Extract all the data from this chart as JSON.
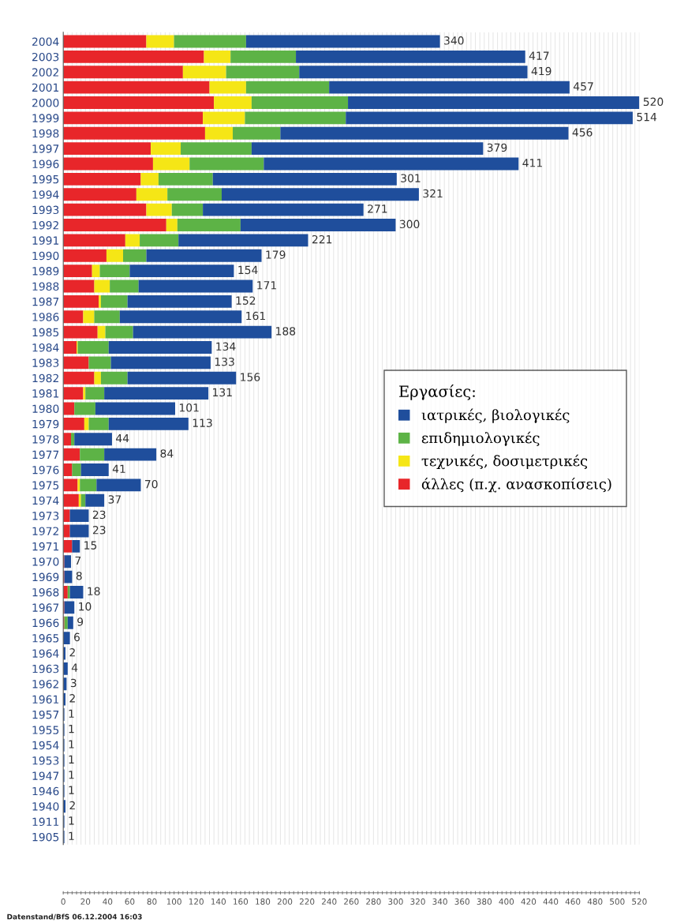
{
  "chart_data": {
    "type": "bar",
    "orientation": "horizontal",
    "stacked": true,
    "categories": [
      "2004",
      "2003",
      "2002",
      "2001",
      "2000",
      "1999",
      "1998",
      "1997",
      "1996",
      "1995",
      "1994",
      "1993",
      "1992",
      "1991",
      "1990",
      "1989",
      "1988",
      "1987",
      "1986",
      "1985",
      "1984",
      "1983",
      "1982",
      "1981",
      "1980",
      "1979",
      "1978",
      "1977",
      "1976",
      "1975",
      "1974",
      "1973",
      "1972",
      "1971",
      "1970",
      "1969",
      "1968",
      "1967",
      "1966",
      "1965",
      "1964",
      "1963",
      "1962",
      "1961",
      "1957",
      "1955",
      "1954",
      "1953",
      "1947",
      "1946",
      "1940",
      "1911",
      "1905"
    ],
    "series": [
      {
        "name": "άλλες (π.χ. ανασκοπίσεις)",
        "color": "#e8262a",
        "values": [
          75,
          127,
          108,
          132,
          136,
          126,
          128,
          79,
          81,
          70,
          66,
          75,
          93,
          56,
          39,
          26,
          28,
          32,
          18,
          31,
          12,
          23,
          28,
          18,
          10,
          19,
          7,
          15,
          8,
          13,
          14,
          6,
          6,
          8,
          1,
          1,
          4,
          1,
          1,
          0,
          0,
          0,
          0,
          0,
          0,
          0,
          0,
          0,
          0,
          0,
          0,
          0,
          0
        ]
      },
      {
        "name": "τεχνικές, δοσιμετρικές",
        "color": "#f5e616",
        "values": [
          25,
          24,
          39,
          33,
          34,
          38,
          25,
          27,
          33,
          16,
          28,
          23,
          10,
          13,
          15,
          7,
          14,
          2,
          10,
          7,
          1,
          0,
          6,
          2,
          0,
          4,
          0,
          0,
          0,
          2,
          2,
          0,
          0,
          0,
          0,
          0,
          0,
          0,
          0,
          0,
          0,
          0,
          0,
          0,
          0,
          0,
          0,
          0,
          0,
          0,
          0,
          0,
          0
        ]
      },
      {
        "name": "επιδημιολογικές",
        "color": "#5db346",
        "values": [
          65,
          59,
          66,
          75,
          87,
          91,
          43,
          64,
          67,
          49,
          49,
          28,
          57,
          35,
          21,
          27,
          26,
          24,
          23,
          25,
          28,
          20,
          24,
          17,
          19,
          18,
          3,
          22,
          8,
          15,
          4,
          0,
          0,
          0,
          0,
          0,
          2,
          0,
          3,
          0,
          0,
          0,
          0,
          0,
          0,
          0,
          0,
          0,
          0,
          0,
          0,
          0,
          0
        ]
      },
      {
        "name": "ιατρικές, βιολογικές",
        "color": "#1f4e9c",
        "values": [
          175,
          207,
          206,
          217,
          263,
          259,
          260,
          209,
          230,
          166,
          178,
          145,
          140,
          117,
          104,
          94,
          103,
          94,
          110,
          125,
          93,
          90,
          98,
          94,
          72,
          72,
          34,
          47,
          25,
          40,
          17,
          17,
          17,
          7,
          6,
          7,
          12,
          9,
          5,
          6,
          2,
          4,
          3,
          2,
          1,
          1,
          1,
          1,
          1,
          1,
          2,
          1,
          1
        ]
      }
    ],
    "totals": [
      "340",
      "417",
      "419",
      "457",
      "520",
      "514",
      "456",
      "379",
      "411",
      "301",
      "321",
      "271",
      "300",
      "221",
      "179",
      "154",
      "171",
      "152",
      "161",
      "188",
      "134",
      "133",
      "156",
      "131",
      "101",
      "113",
      "44",
      "84",
      "41",
      "70",
      "37",
      "23",
      "23",
      "15",
      "7",
      "8",
      "18",
      "10",
      "9",
      "6",
      "2",
      "4",
      "3",
      "2",
      "1",
      "1",
      "1",
      "1",
      "1",
      "1",
      "2",
      "1",
      "1"
    ],
    "xlim": [
      0,
      520
    ],
    "xticks": [
      0,
      {
        "value": 4,
        "label": null
      },
      {
        "value": 8,
        "label": null
      },
      {
        "value": 12,
        "label": null
      },
      {
        "value": 16,
        "label": null
      },
      20,
      {
        "value": 24,
        "label": null
      },
      {
        "value": 28,
        "label": null
      },
      {
        "value": 32,
        "label": null
      },
      {
        "value": 36,
        "label": null
      },
      40,
      {
        "value": 44,
        "label": null
      },
      {
        "value": 48,
        "label": null
      },
      {
        "value": 52,
        "label": null
      },
      {
        "value": 56,
        "label": null
      },
      60,
      {
        "value": 64,
        "label": null
      },
      {
        "value": 68,
        "label": null
      },
      {
        "value": 72,
        "label": null
      },
      {
        "value": 76,
        "label": null
      },
      80,
      {
        "value": 84,
        "label": null
      },
      {
        "value": 88,
        "label": null
      },
      {
        "value": 92,
        "label": null
      },
      {
        "value": 96,
        "label": null
      },
      100,
      {
        "value": 104,
        "label": null
      },
      {
        "value": 108,
        "label": null
      },
      {
        "value": 112,
        "label": null
      },
      {
        "value": 116,
        "label": null
      },
      120,
      {
        "value": 124,
        "label": null
      },
      {
        "value": 128,
        "label": null
      },
      {
        "value": 132,
        "label": null
      },
      {
        "value": 136,
        "label": null
      },
      140,
      {
        "value": 144,
        "label": null
      },
      {
        "value": 148,
        "label": null
      },
      {
        "value": 152,
        "label": null
      },
      {
        "value": 156,
        "label": null
      },
      160,
      {
        "value": 164,
        "label": null
      },
      {
        "value": 168,
        "label": null
      },
      {
        "value": 172,
        "label": null
      },
      {
        "value": 176,
        "label": null
      },
      180,
      {
        "value": 184,
        "label": null
      },
      {
        "value": 188,
        "label": null
      },
      {
        "value": 192,
        "label": null
      },
      {
        "value": 196,
        "label": null
      },
      200,
      {
        "value": 204,
        "label": null
      },
      {
        "value": 208,
        "label": null
      },
      {
        "value": 212,
        "label": null
      },
      {
        "value": 216,
        "label": null
      },
      220,
      {
        "value": 224,
        "label": null
      },
      {
        "value": 228,
        "label": null
      },
      {
        "value": 232,
        "label": null
      },
      {
        "value": 236,
        "label": null
      },
      240,
      {
        "value": 244,
        "label": null
      },
      {
        "value": 248,
        "label": null
      },
      {
        "value": 252,
        "label": null
      },
      {
        "value": 256,
        "label": null
      },
      260,
      {
        "value": 264,
        "label": null
      },
      {
        "value": 268,
        "label": null
      },
      {
        "value": 272,
        "label": null
      },
      {
        "value": 276,
        "label": null
      },
      280,
      {
        "value": 284,
        "label": null
      },
      {
        "value": 288,
        "label": null
      },
      {
        "value": 292,
        "label": null
      },
      {
        "value": 296,
        "label": null
      },
      300,
      {
        "value": 304,
        "label": null
      },
      {
        "value": 308,
        "label": null
      },
      {
        "value": 312,
        "label": null
      },
      {
        "value": 316,
        "label": null
      },
      320,
      {
        "value": 324,
        "label": null
      },
      {
        "value": 328,
        "label": null
      },
      {
        "value": 332,
        "label": null
      },
      {
        "value": 336,
        "label": null
      },
      340,
      {
        "value": 344,
        "label": null
      },
      {
        "value": 348,
        "label": null
      },
      {
        "value": 352,
        "label": null
      },
      {
        "value": 356,
        "label": null
      },
      360,
      {
        "value": 364,
        "label": null
      },
      {
        "value": 368,
        "label": null
      },
      {
        "value": 372,
        "label": null
      },
      {
        "value": 376,
        "label": null
      },
      380,
      {
        "value": 384,
        "label": null
      },
      {
        "value": 388,
        "label": null
      },
      {
        "value": 392,
        "label": null
      },
      {
        "value": 396,
        "label": null
      },
      400,
      {
        "value": 404,
        "label": null
      },
      {
        "value": 408,
        "label": null
      },
      {
        "value": 412,
        "label": null
      },
      {
        "value": 416,
        "label": null
      },
      420,
      {
        "value": 424,
        "label": null
      },
      {
        "value": 428,
        "label": null
      },
      {
        "value": 432,
        "label": null
      },
      {
        "value": 436,
        "label": null
      },
      440,
      {
        "value": 444,
        "label": null
      },
      {
        "value": 448,
        "label": null
      },
      {
        "value": 452,
        "label": null
      },
      {
        "value": 456,
        "label": null
      },
      460,
      {
        "value": 464,
        "label": null
      },
      {
        "value": 468,
        "label": null
      },
      {
        "value": 472,
        "label": null
      },
      {
        "value": 476,
        "label": null
      },
      480,
      {
        "value": 484,
        "label": null
      },
      {
        "value": 488,
        "label": null
      },
      {
        "value": 492,
        "label": null
      },
      {
        "value": 496,
        "label": null
      },
      500,
      {
        "value": 504,
        "label": null
      },
      {
        "value": 508,
        "label": null
      },
      {
        "value": 512,
        "label": null
      },
      {
        "value": 516,
        "label": null
      },
      520
    ],
    "grid": "x",
    "legend": "right",
    "legend_title": "Εργασίες:",
    "annotations": [
      "Datenstand/BfS 06.12.2004 16:03"
    ]
  }
}
